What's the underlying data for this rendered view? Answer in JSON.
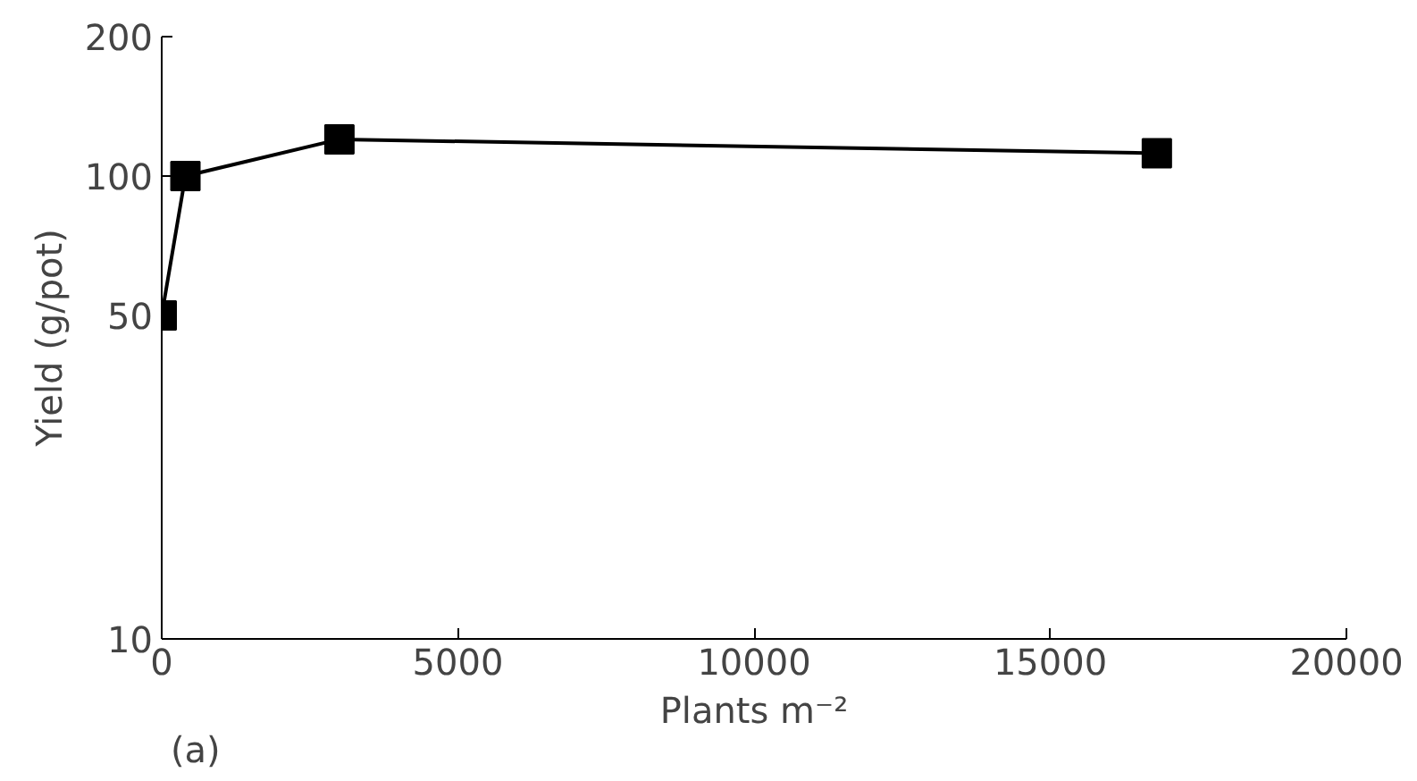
{
  "chart_data": {
    "type": "line",
    "xlabel": "Plants m⁻²",
    "ylabel": "Yield (g/pot)",
    "annotations": [
      "(a)"
    ],
    "x": [
      0,
      400,
      3000,
      16800
    ],
    "series": [
      {
        "color": "#000000",
        "values": [
          50,
          100,
          120,
          112
        ]
      }
    ],
    "xlim": [
      0,
      20000
    ],
    "xticks": [
      0,
      5000,
      10000,
      15000,
      20000
    ],
    "ylim": [
      10,
      200
    ],
    "yticks": [
      10,
      50,
      100,
      200
    ],
    "log": "y",
    "grid": false,
    "marker": "square",
    "line_style": "solid"
  }
}
